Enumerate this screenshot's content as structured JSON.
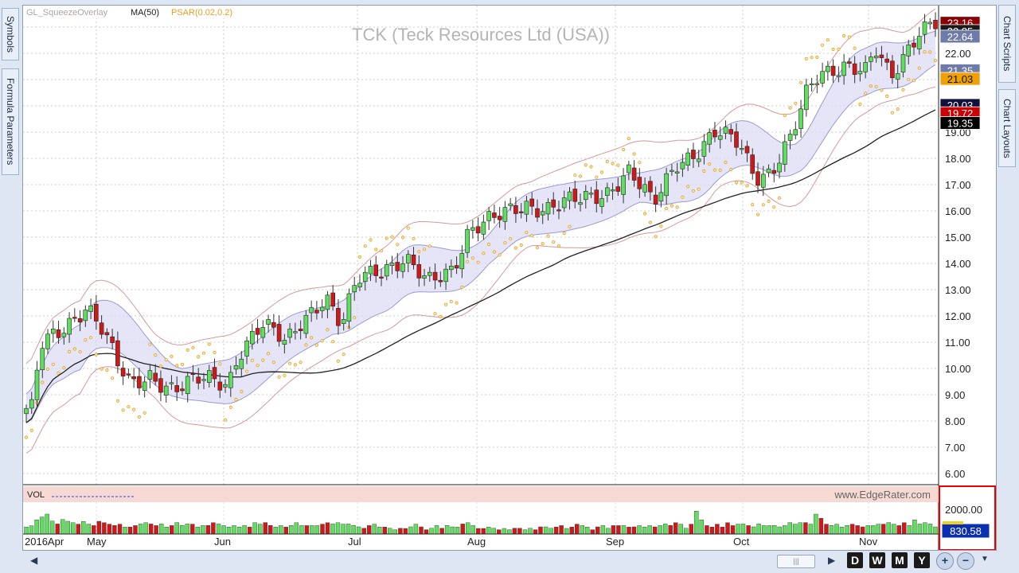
{
  "left_tabs": [
    "Symbols",
    "Formula Parameters"
  ],
  "right_tabs": [
    "Chart Scripts",
    "Chart Layouts"
  ],
  "chart_data": {
    "type": "candlestick",
    "title": "TCK (Teck Resources Ltd (USA))",
    "watermark": "www.EdgeRater.com",
    "indicators": [
      "GL_SqueezeOverlay",
      "MA(50)",
      "PSAR(0.02,0.2)"
    ],
    "indicator_colors": [
      "#b0a4a4",
      "#202020",
      "#e8a020"
    ],
    "y_ticks": [
      "23.00",
      "22.00",
      "21.00",
      "20.00",
      "19.00",
      "18.00",
      "17.00",
      "16.00",
      "15.00",
      "14.00",
      "13.00",
      "12.00",
      "11.00",
      "10.00",
      "9.00",
      "8.00",
      "7.00",
      "6.00"
    ],
    "x_labels": [
      "2016Apr",
      "May",
      "Jun",
      "Jul",
      "Aug",
      "Sep",
      "Oct",
      "Nov"
    ],
    "price_tags": [
      {
        "label": "23.16",
        "value": 23.16,
        "color": "#8b0000"
      },
      {
        "label": "22.85",
        "value": 22.85,
        "color": "#1a1a1a"
      },
      {
        "label": "22.64",
        "value": 22.64,
        "color": "#6e7aa8"
      },
      {
        "label": "21.35",
        "value": 21.35,
        "color": "#6e7aa8"
      },
      {
        "label": "21.03",
        "value": 21.03,
        "color": "#f0a000"
      },
      {
        "label": "20.03",
        "value": 20.03,
        "color": "#10103a"
      },
      {
        "label": "19.72",
        "value": 19.72,
        "color": "#cc0000"
      },
      {
        "label": "19.35",
        "value": 19.35,
        "color": "#000000"
      }
    ],
    "volume": {
      "label": "VOL",
      "axis_label": "2000.00",
      "current": "830.58",
      "values": [
        490,
        580,
        990,
        1190,
        1390,
        900,
        700,
        1010,
        890,
        790,
        690,
        880,
        690,
        590,
        890,
        790,
        690,
        600,
        690,
        490,
        490,
        590,
        700,
        790,
        700,
        590,
        700,
        490,
        590,
        800,
        600,
        700,
        690,
        490,
        590,
        600,
        790,
        700,
        590,
        490,
        590,
        490,
        590,
        490,
        790,
        690,
        800,
        600,
        490,
        590,
        490,
        600,
        790,
        590,
        590,
        590,
        590,
        690,
        790,
        700,
        790,
        690,
        700,
        600,
        500,
        400,
        590,
        690,
        490,
        490,
        400,
        300,
        400,
        390,
        500,
        690,
        500,
        300,
        400,
        590,
        400,
        600,
        500,
        490,
        700,
        790,
        590,
        390,
        390,
        490,
        400,
        300,
        390,
        300,
        400,
        400,
        300,
        400,
        300,
        500,
        500,
        400,
        490,
        590,
        390,
        490,
        690,
        590,
        490,
        300,
        500,
        590,
        400,
        590,
        590,
        590,
        490,
        500,
        590,
        490,
        590,
        500,
        590,
        700,
        600,
        790,
        690,
        400,
        690,
        1600,
        990,
        590,
        490,
        690,
        490,
        790,
        590,
        690,
        700,
        590,
        500,
        700,
        590,
        590,
        600,
        500,
        590,
        800,
        690,
        790,
        800,
        690,
        1390,
        1100,
        690,
        600,
        690,
        490,
        600,
        690,
        590,
        500,
        590,
        590,
        690,
        690,
        800,
        690,
        590,
        790,
        600,
        990,
        700,
        790,
        700,
        500
      ]
    }
  }
}
